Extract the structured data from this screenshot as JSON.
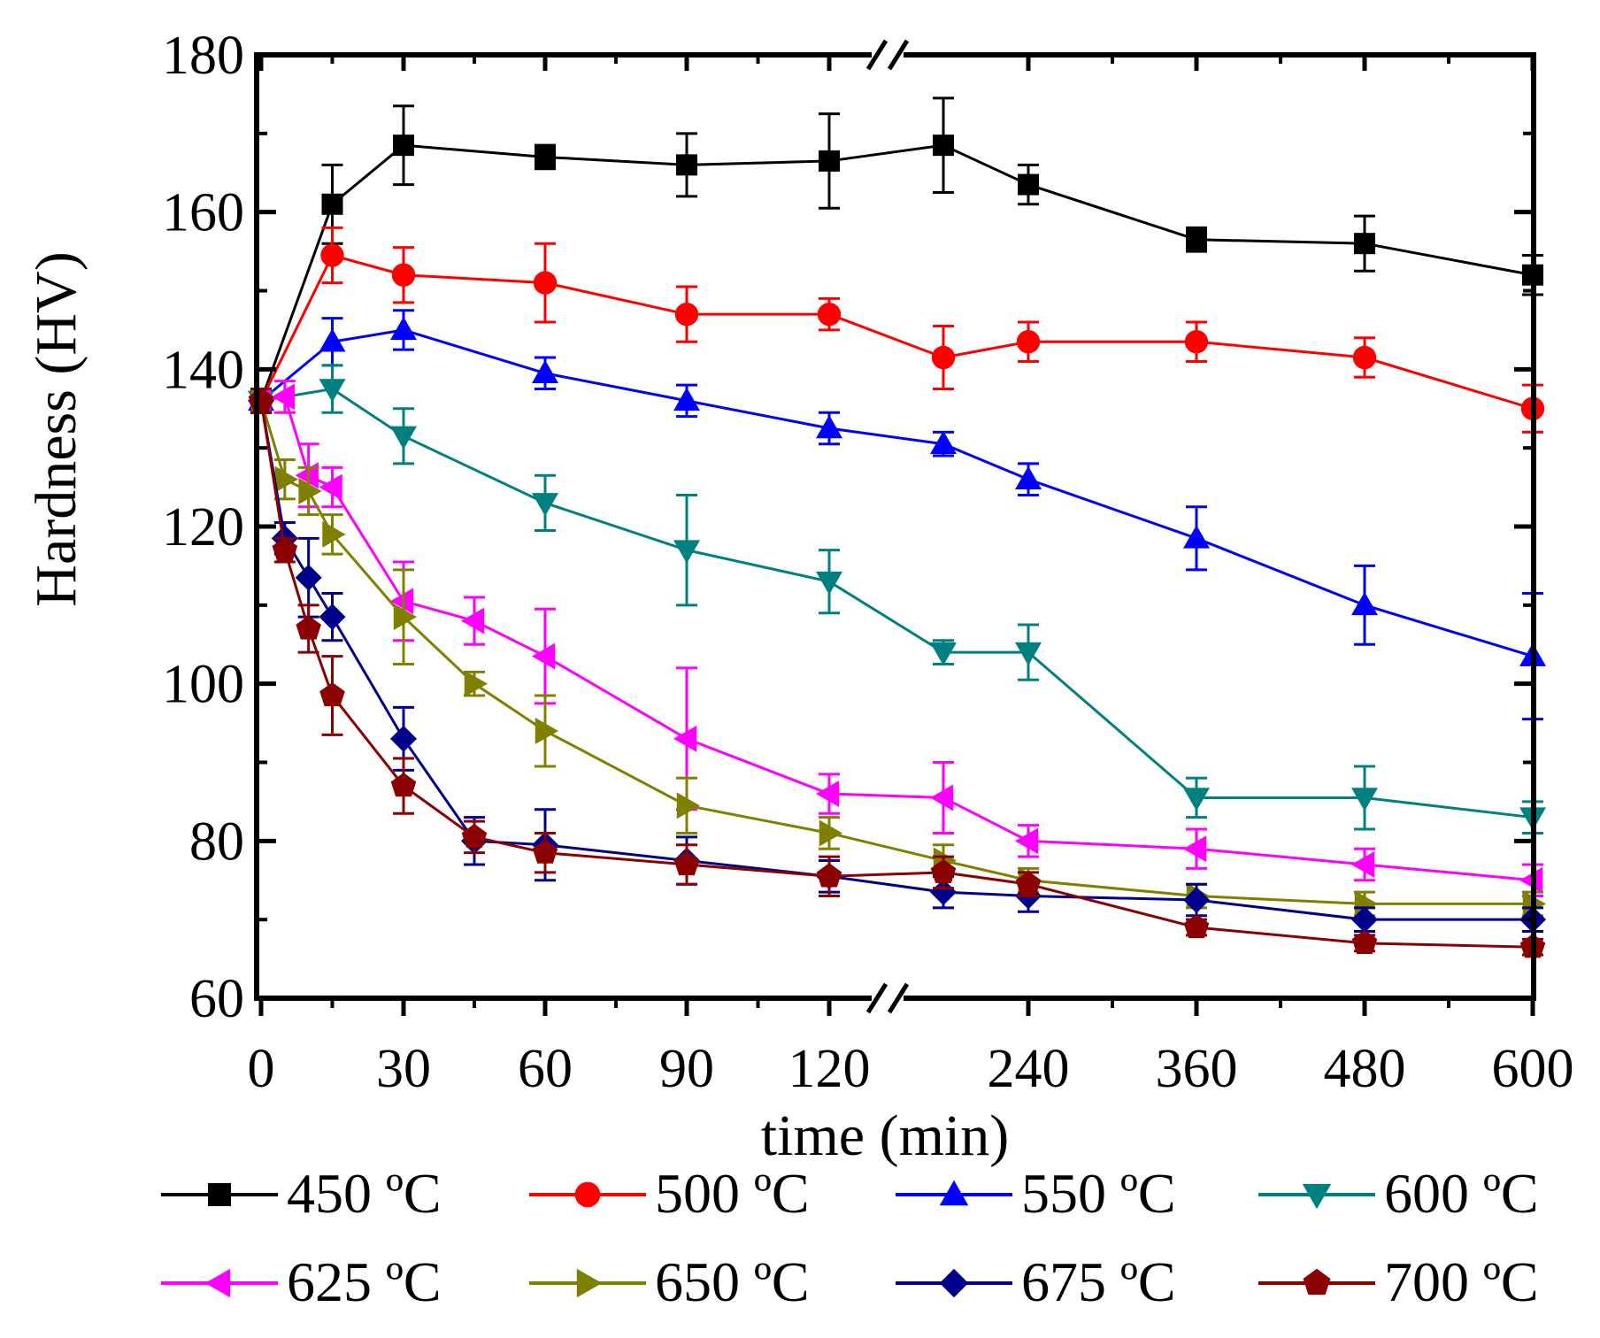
{
  "chart_data": {
    "type": "line",
    "title": "",
    "xlabel": "time (min)",
    "ylabel": "Hardness  (HV)",
    "ylim": [
      60,
      180
    ],
    "yticks": [
      60,
      80,
      100,
      120,
      140,
      160,
      180
    ],
    "x_axis_break": "between 120 and 240 min (broken axis, non-linear beyond break)",
    "xtick_values": [
      0,
      30,
      60,
      90,
      120,
      240,
      360,
      480,
      600
    ],
    "xtick_labels": [
      "0",
      "30",
      "60",
      "90",
      "120",
      "240",
      "360",
      "480",
      "600"
    ],
    "grid": false,
    "legend_position": "bottom",
    "series": [
      {
        "name": "450 ºC",
        "color": "#000000",
        "marker": "square",
        "x": [
          0,
          15,
          30,
          60,
          90,
          120,
          180,
          240,
          360,
          480,
          600
        ],
        "y": [
          136,
          161,
          168.5,
          167,
          166,
          166.5,
          168.5,
          163.5,
          156.5,
          156,
          152
        ],
        "err": [
          1.5,
          5,
          5,
          1.5,
          4,
          6,
          6,
          2.5,
          1.5,
          3.5,
          2.5
        ]
      },
      {
        "name": "500 ºC",
        "color": "#ff0000",
        "marker": "circle",
        "x": [
          0,
          15,
          30,
          60,
          90,
          120,
          180,
          240,
          360,
          480,
          600
        ],
        "y": [
          136,
          154.5,
          152,
          151,
          147,
          147,
          141.5,
          143.5,
          143.5,
          141.5,
          135
        ],
        "err": [
          1.5,
          3.5,
          3.5,
          5,
          3.5,
          2,
          4,
          2.5,
          2.5,
          2.5,
          3
        ]
      },
      {
        "name": "550 ºC",
        "color": "#0000ff",
        "marker": "triangle-up",
        "x": [
          0,
          15,
          30,
          60,
          90,
          120,
          180,
          240,
          360,
          480,
          600
        ],
        "y": [
          136,
          143.5,
          145,
          139.5,
          136,
          132.5,
          130.5,
          126,
          118.5,
          110,
          103.5
        ],
        "err": [
          1.5,
          3,
          2.5,
          2,
          2,
          2,
          1.5,
          2,
          4,
          5,
          8
        ]
      },
      {
        "name": "600 ºC",
        "color": "#008080",
        "marker": "triangle-down",
        "x": [
          0,
          15,
          30,
          60,
          90,
          120,
          180,
          240,
          360,
          480,
          600
        ],
        "y": [
          136,
          137.5,
          131.5,
          123,
          117,
          113,
          104,
          104,
          85.5,
          85.5,
          83
        ],
        "err": [
          1.5,
          3,
          3.5,
          3.5,
          7,
          4,
          1.5,
          3.5,
          2.5,
          4,
          2
        ]
      },
      {
        "name": "625 ºC",
        "color": "#ff00ff",
        "marker": "triangle-left",
        "x": [
          0,
          5,
          10,
          15,
          30,
          45,
          60,
          90,
          120,
          180,
          240,
          360,
          480,
          600
        ],
        "y": [
          136,
          136.5,
          126.5,
          125,
          110.5,
          108,
          103.5,
          93,
          86,
          85.5,
          80,
          79,
          77,
          75
        ],
        "err": [
          1.5,
          2,
          4,
          2.5,
          5,
          3,
          6,
          9,
          2.5,
          4.5,
          2,
          2.5,
          2,
          2
        ]
      },
      {
        "name": "650 ºC",
        "color": "#808000",
        "marker": "triangle-right",
        "x": [
          0,
          5,
          10,
          15,
          30,
          45,
          60,
          90,
          120,
          180,
          240,
          360,
          480,
          600
        ],
        "y": [
          136,
          126,
          124.5,
          119,
          108.5,
          100,
          94,
          84.5,
          81,
          77.5,
          75,
          73,
          72,
          72
        ],
        "err": [
          1.5,
          2.5,
          3,
          2.5,
          6,
          1.5,
          4.5,
          3.5,
          2,
          2,
          1.5,
          1.5,
          1.5,
          1.5
        ]
      },
      {
        "name": "675 ºC",
        "color": "#00008b",
        "marker": "diamond",
        "x": [
          0,
          5,
          10,
          15,
          30,
          45,
          60,
          90,
          120,
          180,
          240,
          360,
          480,
          600
        ],
        "y": [
          136,
          118.5,
          113.5,
          108.5,
          93,
          80,
          79.5,
          77.5,
          75.5,
          73.5,
          73,
          72.5,
          70,
          70
        ],
        "err": [
          1.5,
          2,
          5,
          3,
          4,
          3,
          4.5,
          3,
          2,
          2,
          2,
          2,
          1.5,
          1.5
        ]
      },
      {
        "name": "700 ºC",
        "color": "#8b0000",
        "marker": "pentagon",
        "x": [
          0,
          5,
          10,
          15,
          30,
          45,
          60,
          90,
          120,
          180,
          240,
          360,
          480,
          600
        ],
        "y": [
          136,
          117,
          107,
          98.5,
          87,
          80.5,
          78.5,
          77,
          75.5,
          76,
          74.5,
          69,
          67,
          66.5
        ],
        "err": [
          1.5,
          1.5,
          3,
          5,
          3.5,
          2,
          2.5,
          2.5,
          2.5,
          2,
          1.5,
          1,
          1,
          1
        ]
      }
    ]
  }
}
